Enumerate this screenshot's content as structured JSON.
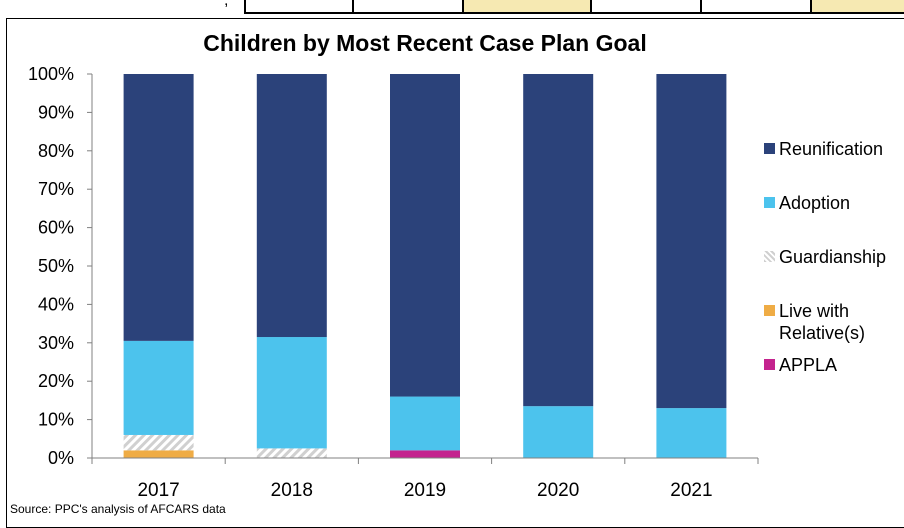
{
  "colors": {
    "Reunification": "#2b427a",
    "Adoption": "#4cc3ed",
    "Guardianship": "#d9d9d9",
    "Live with Relative(s)": "#efac45",
    "APPLA": "#c4238e"
  },
  "header_strip": {
    "comma": ","
  },
  "source_note": "Source: PPC's analysis of AFCARS data",
  "chart_data": {
    "type": "bar",
    "stacked": true,
    "title": "Children by Most Recent Case Plan Goal",
    "xlabel": "",
    "ylabel": "",
    "ylim": [
      0,
      100
    ],
    "ytick_labels": [
      "0%",
      "10%",
      "20%",
      "30%",
      "40%",
      "50%",
      "60%",
      "70%",
      "80%",
      "90%",
      "100%"
    ],
    "categories": [
      "2017",
      "2018",
      "2019",
      "2020",
      "2021"
    ],
    "series": [
      {
        "name": "Live with Relative(s)",
        "values": [
          2,
          0,
          0,
          0,
          0
        ]
      },
      {
        "name": "APPLA",
        "values": [
          0,
          0,
          2,
          0,
          0
        ]
      },
      {
        "name": "Guardianship",
        "values": [
          4,
          2.5,
          0,
          0,
          0
        ]
      },
      {
        "name": "Adoption",
        "values": [
          24.5,
          29,
          14,
          13.5,
          13
        ]
      },
      {
        "name": "Reunification",
        "values": [
          69.5,
          68.5,
          84,
          86.5,
          87
        ]
      }
    ],
    "legend": {
      "placement": "right",
      "order": [
        "Reunification",
        "Adoption",
        "Guardianship",
        "Live with Relative(s)",
        "APPLA"
      ],
      "labels": [
        "Reunification",
        "Adoption",
        "Guardianship",
        "Live with\nRelative(s)",
        "APPLA"
      ]
    },
    "grid": false
  }
}
